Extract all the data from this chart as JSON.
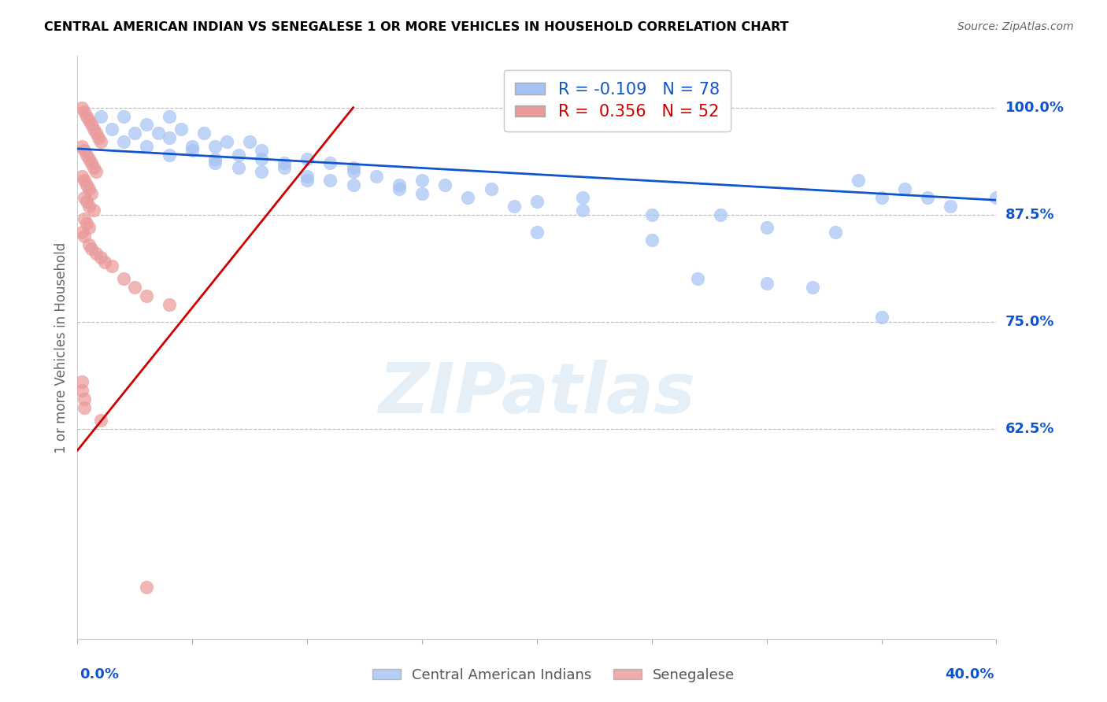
{
  "title": "CENTRAL AMERICAN INDIAN VS SENEGALESE 1 OR MORE VEHICLES IN HOUSEHOLD CORRELATION CHART",
  "source": "Source: ZipAtlas.com",
  "ylabel": "1 or more Vehicles in Household",
  "ytick_labels": [
    "100.0%",
    "87.5%",
    "75.0%",
    "62.5%"
  ],
  "ytick_values": [
    1.0,
    0.875,
    0.75,
    0.625
  ],
  "xlim": [
    0.0,
    0.4
  ],
  "ylim": [
    0.38,
    1.06
  ],
  "watermark": "ZIPatlas",
  "legend_r_blue": "-0.109",
  "legend_n_blue": "78",
  "legend_r_pink": "0.356",
  "legend_n_pink": "52",
  "blue_color": "#a4c2f4",
  "pink_color": "#ea9999",
  "trendline_blue_color": "#1155cc",
  "trendline_pink_color": "#cc0000",
  "axis_label_color": "#1155cc",
  "title_color": "#000000",
  "grid_color": "#b7b7b7",
  "blue_scatter_x": [
    0.01,
    0.015,
    0.02,
    0.025,
    0.03,
    0.035,
    0.04,
    0.045,
    0.02,
    0.03,
    0.04,
    0.05,
    0.055,
    0.06,
    0.065,
    0.04,
    0.05,
    0.06,
    0.07,
    0.075,
    0.08,
    0.06,
    0.07,
    0.08,
    0.09,
    0.1,
    0.11,
    0.12,
    0.08,
    0.09,
    0.1,
    0.11,
    0.12,
    0.13,
    0.14,
    0.15,
    0.1,
    0.12,
    0.14,
    0.16,
    0.18,
    0.2,
    0.15,
    0.17,
    0.19,
    0.22,
    0.22,
    0.25,
    0.28,
    0.2,
    0.25,
    0.3,
    0.33,
    0.34,
    0.36,
    0.38,
    0.35,
    0.37,
    0.4,
    0.27,
    0.3,
    0.32,
    0.35
  ],
  "blue_scatter_y": [
    0.99,
    0.975,
    0.99,
    0.97,
    0.98,
    0.97,
    0.99,
    0.975,
    0.96,
    0.955,
    0.965,
    0.955,
    0.97,
    0.955,
    0.96,
    0.945,
    0.95,
    0.94,
    0.945,
    0.96,
    0.95,
    0.935,
    0.93,
    0.94,
    0.935,
    0.94,
    0.935,
    0.93,
    0.925,
    0.93,
    0.92,
    0.915,
    0.925,
    0.92,
    0.91,
    0.915,
    0.915,
    0.91,
    0.905,
    0.91,
    0.905,
    0.89,
    0.9,
    0.895,
    0.885,
    0.895,
    0.88,
    0.875,
    0.875,
    0.855,
    0.845,
    0.86,
    0.855,
    0.915,
    0.905,
    0.885,
    0.895,
    0.895,
    0.895,
    0.8,
    0.795,
    0.79,
    0.755
  ],
  "pink_scatter_x": [
    0.002,
    0.003,
    0.004,
    0.005,
    0.006,
    0.007,
    0.008,
    0.009,
    0.01,
    0.002,
    0.003,
    0.004,
    0.005,
    0.006,
    0.007,
    0.008,
    0.002,
    0.003,
    0.004,
    0.005,
    0.006,
    0.003,
    0.004,
    0.005,
    0.007,
    0.003,
    0.004,
    0.005,
    0.002,
    0.003,
    0.005,
    0.006,
    0.008,
    0.01,
    0.012,
    0.015,
    0.02,
    0.025,
    0.03,
    0.04,
    0.002,
    0.002,
    0.003,
    0.003,
    0.01,
    0.03
  ],
  "pink_scatter_y": [
    1.0,
    0.995,
    0.99,
    0.985,
    0.98,
    0.975,
    0.97,
    0.965,
    0.96,
    0.955,
    0.95,
    0.945,
    0.94,
    0.935,
    0.93,
    0.925,
    0.92,
    0.915,
    0.91,
    0.905,
    0.9,
    0.895,
    0.89,
    0.885,
    0.88,
    0.87,
    0.865,
    0.86,
    0.855,
    0.85,
    0.84,
    0.835,
    0.83,
    0.825,
    0.82,
    0.815,
    0.8,
    0.79,
    0.78,
    0.77,
    0.68,
    0.67,
    0.66,
    0.65,
    0.635,
    0.44
  ],
  "blue_trend_x": [
    0.0,
    0.4
  ],
  "blue_trend_y": [
    0.952,
    0.892
  ],
  "pink_trend_x": [
    0.0,
    0.12
  ],
  "pink_trend_y": [
    0.6,
    1.0
  ]
}
